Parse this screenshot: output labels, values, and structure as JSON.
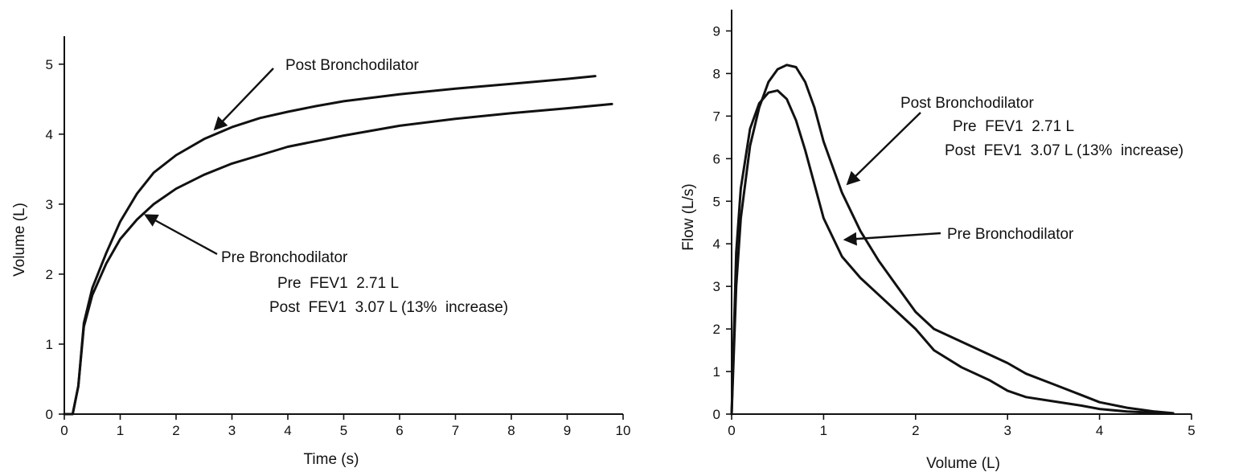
{
  "chart_data": [
    {
      "type": "line",
      "title": "",
      "xlabel": "Time (s)",
      "ylabel": "Volume (L)",
      "xlim": [
        0,
        10
      ],
      "ylim": [
        0,
        5.4
      ],
      "xticks": [
        "0",
        "1",
        "2",
        "3",
        "4",
        "5",
        "6",
        "7",
        "8",
        "9",
        "10"
      ],
      "yticks": [
        "0",
        "1",
        "2",
        "3",
        "4",
        "5"
      ],
      "grid": false,
      "series": [
        {
          "name": "Post Bronchodilator",
          "x": [
            0,
            0.15,
            0.25,
            0.35,
            0.5,
            0.75,
            1.0,
            1.3,
            1.6,
            2.0,
            2.5,
            3.0,
            3.5,
            4.0,
            4.5,
            5.0,
            6.0,
            7.0,
            8.0,
            9.0,
            9.5
          ],
          "y": [
            0,
            0,
            0.4,
            1.3,
            1.8,
            2.3,
            2.75,
            3.15,
            3.45,
            3.7,
            3.93,
            4.1,
            4.23,
            4.32,
            4.4,
            4.47,
            4.57,
            4.65,
            4.72,
            4.79,
            4.83
          ]
        },
        {
          "name": "Pre Bronchodilator",
          "x": [
            0,
            0.15,
            0.25,
            0.35,
            0.5,
            0.75,
            1.0,
            1.3,
            1.6,
            2.0,
            2.5,
            3.0,
            3.5,
            4.0,
            5.0,
            6.0,
            7.0,
            8.0,
            9.0,
            9.8
          ],
          "y": [
            0,
            0,
            0.4,
            1.25,
            1.7,
            2.15,
            2.5,
            2.78,
            3.0,
            3.22,
            3.42,
            3.58,
            3.7,
            3.82,
            3.98,
            4.12,
            4.22,
            4.3,
            4.37,
            4.43
          ]
        }
      ],
      "annotations": {
        "post_label": "Post Bronchodilator",
        "pre_label": "Pre Bronchodilator",
        "pre_fev1": "Pre  FEV1  2.71 L",
        "post_fev1": "Post  FEV1  3.07 L (13%  increase)"
      }
    },
    {
      "type": "line",
      "title": "",
      "xlabel": "Volume (L)",
      "ylabel": "Flow (L/s)",
      "xlim": [
        0,
        5
      ],
      "ylim": [
        0,
        9.5
      ],
      "xticks": [
        "0",
        "1",
        "2",
        "3",
        "4",
        "5"
      ],
      "yticks": [
        "0",
        "1",
        "2",
        "3",
        "4",
        "5",
        "6",
        "7",
        "8",
        "9"
      ],
      "grid": false,
      "series": [
        {
          "name": "Post Bronchodilator",
          "x": [
            0,
            0.05,
            0.1,
            0.2,
            0.3,
            0.4,
            0.5,
            0.6,
            0.7,
            0.8,
            0.9,
            1.0,
            1.2,
            1.4,
            1.6,
            1.8,
            2.0,
            2.2,
            2.5,
            2.8,
            3.0,
            3.2,
            3.5,
            3.8,
            4.0,
            4.3,
            4.6,
            4.8
          ],
          "y": [
            0,
            3.0,
            4.6,
            6.3,
            7.2,
            7.8,
            8.1,
            8.2,
            8.15,
            7.8,
            7.2,
            6.4,
            5.2,
            4.3,
            3.6,
            3.0,
            2.4,
            2.0,
            1.7,
            1.4,
            1.2,
            0.95,
            0.7,
            0.45,
            0.28,
            0.15,
            0.06,
            0.02
          ]
        },
        {
          "name": "Pre Bronchodilator",
          "x": [
            0,
            0.05,
            0.1,
            0.2,
            0.3,
            0.4,
            0.5,
            0.6,
            0.7,
            0.8,
            0.9,
            1.0,
            1.2,
            1.4,
            1.6,
            1.8,
            2.0,
            2.2,
            2.5,
            2.8,
            3.0,
            3.2,
            3.5,
            3.8,
            4.0,
            4.3,
            4.6,
            4.8
          ],
          "y": [
            0,
            3.8,
            5.3,
            6.7,
            7.3,
            7.55,
            7.6,
            7.4,
            6.9,
            6.2,
            5.4,
            4.6,
            3.7,
            3.2,
            2.8,
            2.4,
            2.0,
            1.5,
            1.1,
            0.8,
            0.55,
            0.4,
            0.3,
            0.2,
            0.12,
            0.06,
            0.03,
            0.01
          ]
        }
      ],
      "annotations": {
        "post_label": "Post Bronchodilator",
        "pre_label": "Pre Bronchodilator",
        "pre_fev1": "Pre  FEV1  2.71 L",
        "post_fev1": "Post  FEV1  3.07 L (13%  increase)"
      }
    }
  ]
}
